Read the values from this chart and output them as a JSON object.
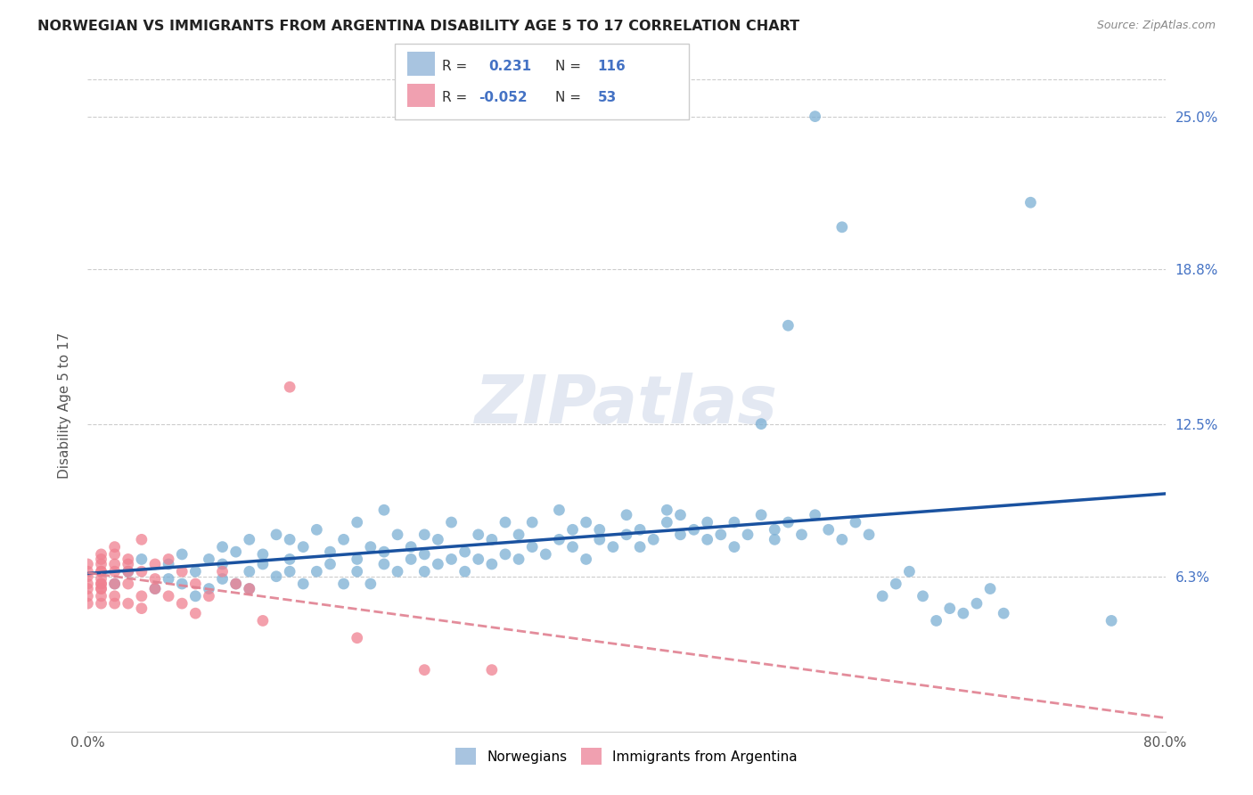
{
  "title": "NORWEGIAN VS IMMIGRANTS FROM ARGENTINA DISABILITY AGE 5 TO 17 CORRELATION CHART",
  "source": "Source: ZipAtlas.com",
  "ylabel": "Disability Age 5 to 17",
  "xlim": [
    0.0,
    0.8
  ],
  "ylim": [
    0.0,
    0.265
  ],
  "yticks": [
    0.063,
    0.125,
    0.188,
    0.25
  ],
  "ytick_labels": [
    "6.3%",
    "12.5%",
    "18.8%",
    "25.0%"
  ],
  "blue_color": "#7bafd4",
  "pink_color": "#f08090",
  "blue_line_color": "#1a52a0",
  "pink_line_color": "#e08090",
  "legend_box_color": "#cccccc",
  "watermark": "ZIPatlas",
  "R_norwegian": 0.231,
  "N_norwegian": 116,
  "R_argentina": -0.052,
  "N_argentina": 53,
  "norwegian_x": [
    0.02,
    0.03,
    0.04,
    0.05,
    0.06,
    0.06,
    0.07,
    0.07,
    0.08,
    0.08,
    0.09,
    0.09,
    0.1,
    0.1,
    0.1,
    0.11,
    0.11,
    0.12,
    0.12,
    0.12,
    0.13,
    0.13,
    0.14,
    0.14,
    0.15,
    0.15,
    0.15,
    0.16,
    0.16,
    0.17,
    0.17,
    0.18,
    0.18,
    0.19,
    0.19,
    0.2,
    0.2,
    0.2,
    0.21,
    0.21,
    0.22,
    0.22,
    0.22,
    0.23,
    0.23,
    0.24,
    0.24,
    0.25,
    0.25,
    0.25,
    0.26,
    0.26,
    0.27,
    0.27,
    0.28,
    0.28,
    0.29,
    0.29,
    0.3,
    0.3,
    0.31,
    0.31,
    0.32,
    0.32,
    0.33,
    0.33,
    0.34,
    0.35,
    0.35,
    0.36,
    0.36,
    0.37,
    0.37,
    0.38,
    0.38,
    0.39,
    0.4,
    0.4,
    0.41,
    0.41,
    0.42,
    0.43,
    0.43,
    0.44,
    0.44,
    0.45,
    0.46,
    0.46,
    0.47,
    0.48,
    0.48,
    0.49,
    0.5,
    0.51,
    0.51,
    0.52,
    0.53,
    0.54,
    0.55,
    0.56,
    0.57,
    0.58,
    0.59,
    0.6,
    0.61,
    0.62,
    0.63,
    0.64,
    0.65,
    0.66,
    0.67,
    0.68,
    0.5,
    0.52,
    0.54,
    0.56,
    0.7,
    0.76
  ],
  "norwegian_y": [
    0.06,
    0.065,
    0.07,
    0.058,
    0.062,
    0.068,
    0.06,
    0.072,
    0.055,
    0.065,
    0.058,
    0.07,
    0.062,
    0.068,
    0.075,
    0.06,
    0.073,
    0.065,
    0.078,
    0.058,
    0.072,
    0.068,
    0.063,
    0.08,
    0.065,
    0.07,
    0.078,
    0.06,
    0.075,
    0.065,
    0.082,
    0.068,
    0.073,
    0.06,
    0.078,
    0.065,
    0.07,
    0.085,
    0.06,
    0.075,
    0.068,
    0.073,
    0.09,
    0.065,
    0.08,
    0.07,
    0.075,
    0.065,
    0.072,
    0.08,
    0.068,
    0.078,
    0.07,
    0.085,
    0.065,
    0.073,
    0.07,
    0.08,
    0.068,
    0.078,
    0.072,
    0.085,
    0.07,
    0.08,
    0.075,
    0.085,
    0.072,
    0.078,
    0.09,
    0.075,
    0.082,
    0.07,
    0.085,
    0.078,
    0.082,
    0.075,
    0.08,
    0.088,
    0.075,
    0.082,
    0.078,
    0.085,
    0.09,
    0.08,
    0.088,
    0.082,
    0.078,
    0.085,
    0.08,
    0.075,
    0.085,
    0.08,
    0.088,
    0.082,
    0.078,
    0.085,
    0.08,
    0.088,
    0.082,
    0.078,
    0.085,
    0.08,
    0.055,
    0.06,
    0.065,
    0.055,
    0.045,
    0.05,
    0.048,
    0.052,
    0.058,
    0.048,
    0.125,
    0.165,
    0.25,
    0.205,
    0.215,
    0.045
  ],
  "argentina_x": [
    0.0,
    0.0,
    0.0,
    0.0,
    0.0,
    0.0,
    0.0,
    0.01,
    0.01,
    0.01,
    0.01,
    0.01,
    0.01,
    0.01,
    0.01,
    0.01,
    0.01,
    0.01,
    0.01,
    0.02,
    0.02,
    0.02,
    0.02,
    0.02,
    0.02,
    0.02,
    0.03,
    0.03,
    0.03,
    0.03,
    0.03,
    0.04,
    0.04,
    0.04,
    0.04,
    0.05,
    0.05,
    0.05,
    0.06,
    0.06,
    0.07,
    0.07,
    0.08,
    0.08,
    0.09,
    0.1,
    0.11,
    0.12,
    0.13,
    0.15,
    0.2,
    0.25,
    0.3
  ],
  "argentina_y": [
    0.063,
    0.06,
    0.058,
    0.055,
    0.052,
    0.065,
    0.068,
    0.07,
    0.065,
    0.062,
    0.06,
    0.058,
    0.055,
    0.052,
    0.072,
    0.068,
    0.065,
    0.06,
    0.058,
    0.068,
    0.065,
    0.075,
    0.072,
    0.06,
    0.055,
    0.052,
    0.07,
    0.068,
    0.065,
    0.06,
    0.052,
    0.078,
    0.065,
    0.055,
    0.05,
    0.068,
    0.062,
    0.058,
    0.07,
    0.055,
    0.065,
    0.052,
    0.06,
    0.048,
    0.055,
    0.065,
    0.06,
    0.058,
    0.045,
    0.14,
    0.038,
    0.025,
    0.025
  ]
}
